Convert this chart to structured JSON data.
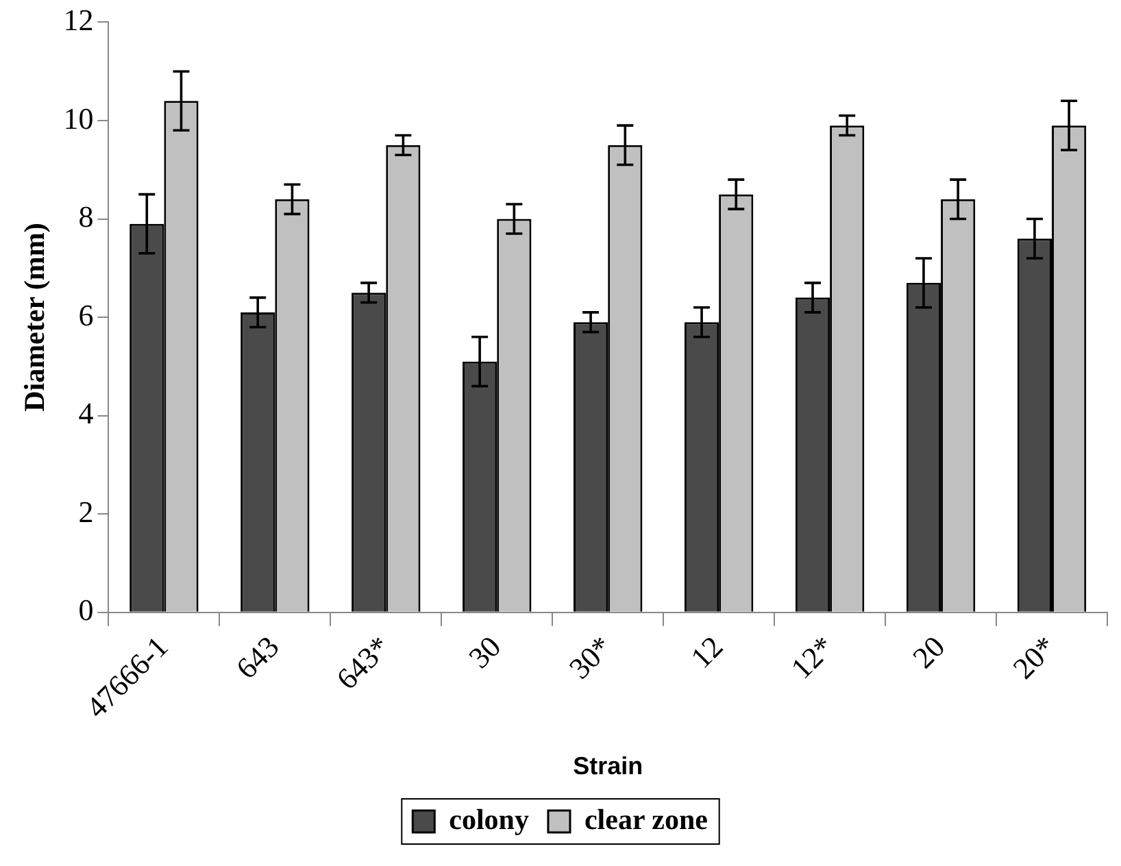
{
  "chart_data": {
    "type": "bar",
    "xlabel": "Strain",
    "ylabel": "Diameter (mm)",
    "categories": [
      "47666-1",
      "643",
      "643*",
      "30",
      "30*",
      "12",
      "12*",
      "20",
      "20*"
    ],
    "series": [
      {
        "name": "colony",
        "color": "#4a4a4a",
        "values": [
          7.9,
          6.1,
          6.5,
          5.1,
          5.9,
          5.9,
          6.4,
          6.7,
          7.6
        ],
        "errors": [
          0.6,
          0.3,
          0.2,
          0.5,
          0.2,
          0.3,
          0.3,
          0.5,
          0.4
        ]
      },
      {
        "name": "clear zone",
        "color": "#c0c0c0",
        "values": [
          10.4,
          8.4,
          9.5,
          8.0,
          9.5,
          8.5,
          9.9,
          8.4,
          9.9
        ],
        "errors": [
          0.6,
          0.3,
          0.2,
          0.3,
          0.4,
          0.3,
          0.2,
          0.4,
          0.5
        ]
      }
    ],
    "ylim": [
      0,
      12
    ],
    "yticks": [
      0,
      2,
      4,
      6,
      8,
      10,
      12
    ],
    "grid": false,
    "legend": "bottom"
  }
}
